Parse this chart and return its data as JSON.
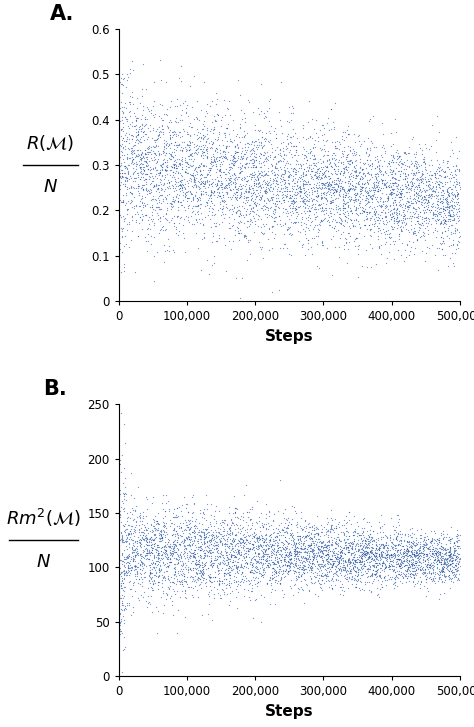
{
  "fig_width": 4.74,
  "fig_height": 7.27,
  "dpi": 100,
  "dot_color": "#1F4E9C",
  "dot_size": 0.8,
  "dot_alpha": 0.6,
  "n_points": 5000,
  "x_max": 500000,
  "panel_A": {
    "label": "A.",
    "ylabel_top": "$R(\\mathcal{M})$",
    "ylabel_bot": "$N$",
    "xlabel": "Steps",
    "ylim": [
      0,
      0.6
    ],
    "yticks": [
      0,
      0.1,
      0.2,
      0.3,
      0.4,
      0.5,
      0.6
    ],
    "ytick_labels": [
      "0",
      "0.1",
      "0.2",
      "0.3",
      "0.4",
      "0.5",
      "0.6"
    ],
    "mean_start": 0.3,
    "mean_end": 0.22,
    "std_start": 0.08,
    "std_end": 0.05,
    "early_spike_mean": 0.3,
    "early_spike_std": 0.12
  },
  "panel_B": {
    "label": "B.",
    "ylabel_top": "$Rm^2(\\mathcal{M})$",
    "ylabel_bot": "$N$",
    "xlabel": "Steps",
    "ylim": [
      0,
      250
    ],
    "yticks": [
      0,
      50,
      100,
      150,
      200,
      250
    ],
    "ytick_labels": [
      "0",
      "50",
      "100",
      "150",
      "200",
      "250"
    ],
    "mean_start": 115,
    "mean_end": 108,
    "std_start": 22,
    "std_end": 11,
    "early_spike_mean": 115,
    "early_spike_std": 45
  },
  "xticks": [
    0,
    100000,
    200000,
    300000,
    400000,
    500000
  ],
  "xtick_labels": [
    "0",
    "100,000",
    "200,000",
    "300,000",
    "400,000",
    "500,000"
  ],
  "label_fontsize": 13,
  "tick_fontsize": 8.5,
  "xlabel_fontsize": 11,
  "panel_label_fontsize": 15
}
